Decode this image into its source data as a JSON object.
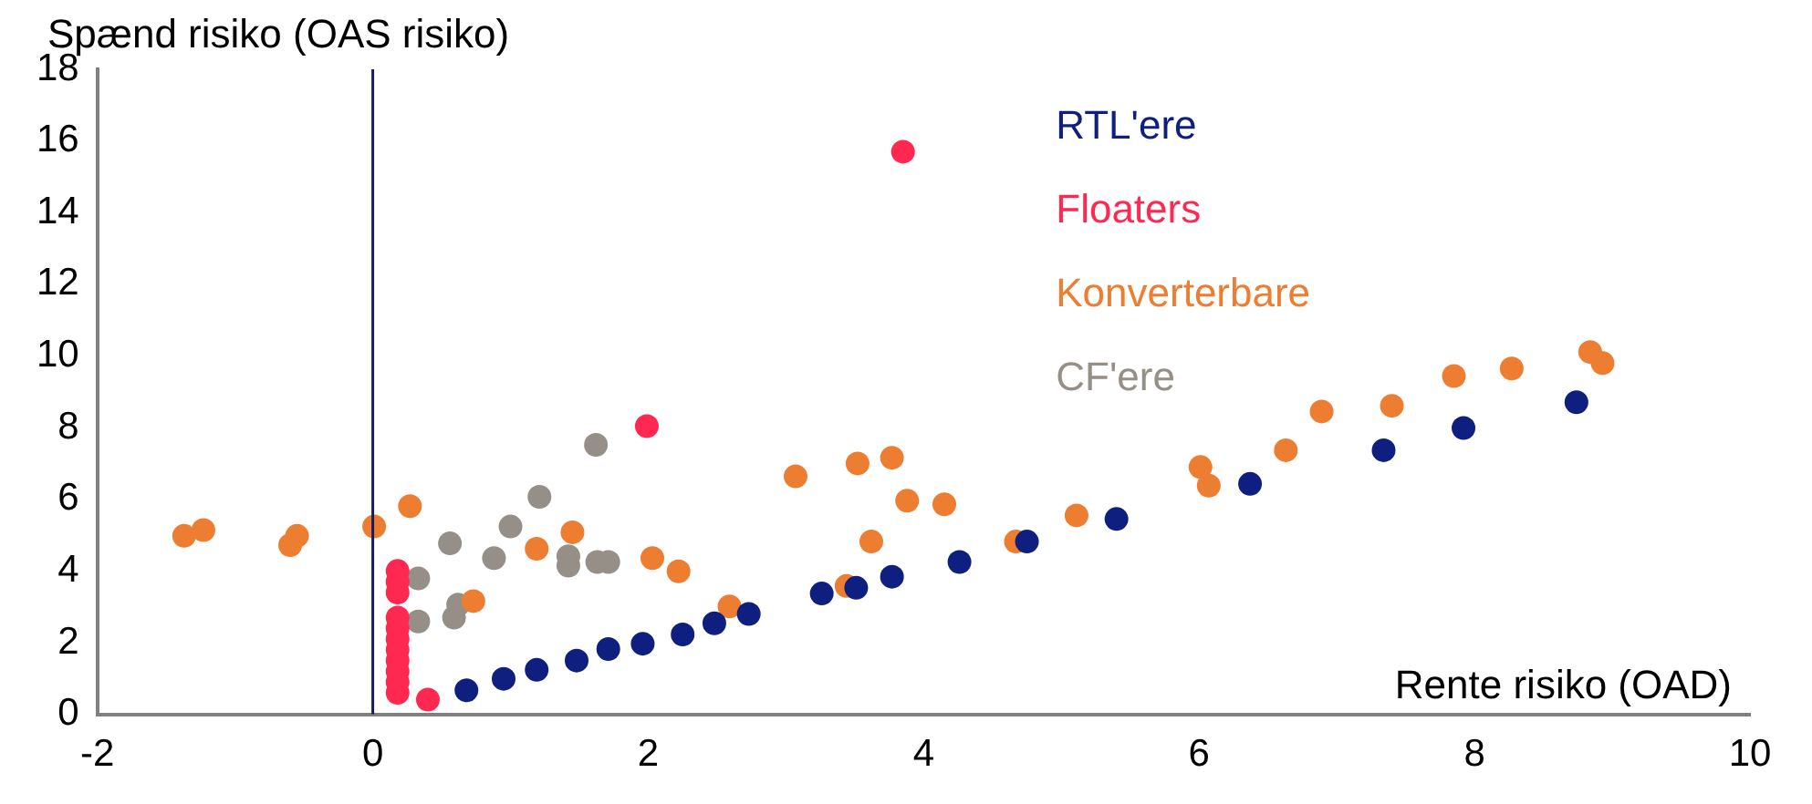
{
  "chart_data": {
    "type": "scatter",
    "xlabel": "Rente risiko (OAD)",
    "ylabel": "Spænd risiko (OAS risiko)",
    "xlim": [
      -2,
      10
    ],
    "xticks": [
      -2,
      0,
      2,
      4,
      6,
      8,
      10
    ],
    "ylim": [
      0,
      18
    ],
    "yticks": [
      0,
      2,
      4,
      6,
      8,
      10,
      12,
      14,
      16,
      18
    ],
    "grid": false,
    "legend": "top right",
    "marker": "circle",
    "ref_lines": [
      {
        "axis": "x",
        "value": 0,
        "color": "#1a1a5e"
      }
    ],
    "series": [
      {
        "name": "RTL'ere",
        "color": "#0f1f7f",
        "x": [
          0.68,
          0.95,
          1.19,
          1.48,
          1.71,
          1.96,
          2.25,
          2.48,
          2.73,
          3.26,
          3.51,
          3.77,
          4.26,
          4.75,
          5.4,
          6.37,
          7.34,
          7.92,
          8.74
        ],
        "values": [
          0.67,
          0.99,
          1.24,
          1.5,
          1.82,
          1.97,
          2.23,
          2.54,
          2.8,
          3.37,
          3.53,
          3.84,
          4.25,
          4.82,
          5.45,
          6.43,
          7.37,
          7.99,
          8.71
        ]
      },
      {
        "name": "Floaters",
        "color": "#ff2850",
        "x": [
          0.18,
          0.18,
          0.18,
          0.18,
          0.18,
          0.18,
          0.18,
          0.18,
          0.18,
          0.18,
          0.18,
          0.4,
          1.99,
          3.85
        ],
        "values": [
          4.0,
          3.7,
          3.4,
          2.7,
          2.4,
          2.1,
          1.8,
          1.5,
          1.2,
          0.9,
          0.6,
          0.41,
          8.04,
          15.7
        ]
      },
      {
        "name": "Konverterbare",
        "color": "#ed7d31",
        "x": [
          -1.37,
          -1.23,
          -0.6,
          -0.55,
          0.01,
          0.27,
          0.73,
          1.19,
          1.45,
          2.03,
          2.22,
          2.59,
          3.07,
          3.44,
          3.52,
          3.62,
          3.77,
          3.88,
          4.15,
          4.67,
          5.11,
          6.01,
          6.07,
          6.63,
          6.89,
          7.4,
          7.85,
          8.27,
          8.84,
          8.93
        ],
        "values": [
          4.98,
          5.14,
          4.72,
          4.98,
          5.24,
          5.81,
          3.16,
          4.62,
          5.08,
          4.36,
          3.99,
          3.01,
          6.64,
          3.58,
          7.0,
          4.82,
          7.16,
          5.96,
          5.86,
          4.82,
          5.55,
          6.9,
          6.38,
          7.37,
          8.45,
          8.61,
          9.44,
          9.65,
          10.11,
          9.8
        ]
      },
      {
        "name": "CF'ere",
        "color": "#968f87",
        "x": [
          0.33,
          0.33,
          0.56,
          0.59,
          0.62,
          0.88,
          1.0,
          1.21,
          1.42,
          1.42,
          1.63,
          1.71,
          1.62
        ],
        "values": [
          3.79,
          2.59,
          4.77,
          2.7,
          3.06,
          4.36,
          5.24,
          6.07,
          4.15,
          4.41,
          4.25,
          4.25,
          7.52
        ]
      }
    ]
  }
}
